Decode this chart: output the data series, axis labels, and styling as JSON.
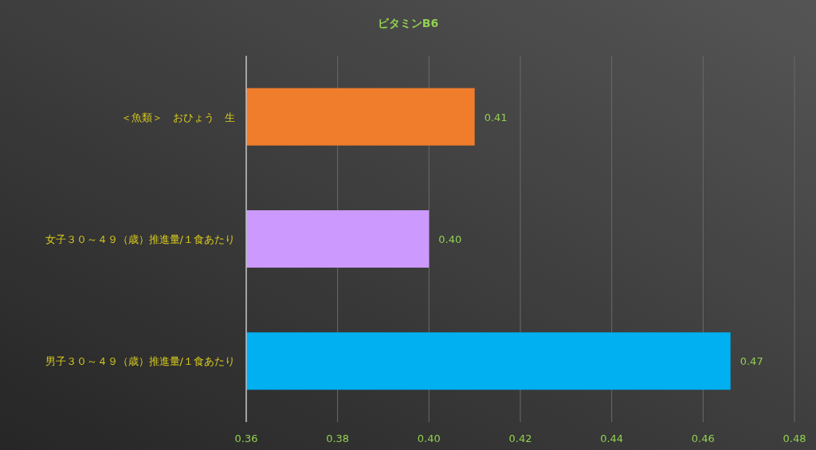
{
  "chart_data": {
    "type": "bar",
    "orientation": "horizontal",
    "title": "ビタミンB6",
    "categories": [
      "＜魚類＞　おひょう　生",
      "女子３０～４９（歳）推進量/１食あたり",
      "男子３０～４９（歳）推進量/１食あたり"
    ],
    "values": [
      0.41,
      0.4,
      0.466
    ],
    "value_labels": [
      "0.41",
      "0.40",
      "0.47"
    ],
    "colors": [
      "#f07d2c",
      "#cc99ff",
      "#00b0f0"
    ],
    "xlim": [
      0.36,
      0.48
    ],
    "xticks": [
      0.36,
      0.38,
      {
        "value": 0.4,
        "label": "0.40"
      },
      0.42,
      0.44,
      0.46,
      0.48
    ],
    "grid": "x"
  }
}
